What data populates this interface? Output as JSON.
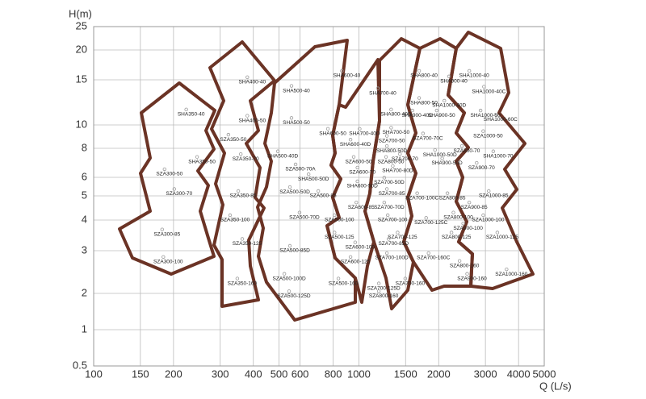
{
  "chart_data": {
    "type": "scatter",
    "y_label": "H(m)",
    "x_label": "Q (L/s)",
    "xscale": "log",
    "yscale": "log",
    "xlim": [
      100,
      5000
    ],
    "ylim": [
      0.5,
      25
    ],
    "xticks": [
      100,
      150,
      200,
      300,
      400,
      500,
      600,
      800,
      1000,
      1500,
      2000,
      3000,
      4000,
      5000
    ],
    "yticks": [
      0.5,
      1,
      2,
      3,
      4,
      5,
      6,
      8,
      10,
      15,
      20,
      25
    ],
    "grid": true,
    "marker_color": "#999999",
    "points": [
      {
        "label": "SHA350-40",
        "x": 233,
        "y": 11.0
      },
      {
        "label": "SHA350-50",
        "x": 256,
        "y": 7.0
      },
      {
        "label": "SZA300-50",
        "x": 193,
        "y": 6.2
      },
      {
        "label": "SZA300-70",
        "x": 210,
        "y": 5.1
      },
      {
        "label": "SZA300-85",
        "x": 189,
        "y": 3.5
      },
      {
        "label": "SZA300-100",
        "x": 191,
        "y": 2.7
      },
      {
        "label": "SHA400-40",
        "x": 396,
        "y": 14.7
      },
      {
        "label": "SHA400-50",
        "x": 396,
        "y": 10.4
      },
      {
        "label": "SZA350-50",
        "x": 336,
        "y": 8.7
      },
      {
        "label": "SZA350-70",
        "x": 374,
        "y": 7.2
      },
      {
        "label": "SZA350-85",
        "x": 366,
        "y": 5.0
      },
      {
        "label": "SZA350-100",
        "x": 341,
        "y": 4.0
      },
      {
        "label": "SZA350-125",
        "x": 379,
        "y": 3.2
      },
      {
        "label": "SZA350-160",
        "x": 363,
        "y": 2.2
      },
      {
        "label": "SHA500-40",
        "x": 581,
        "y": 13.6
      },
      {
        "label": "SHA500-50",
        "x": 581,
        "y": 10.2
      },
      {
        "label": "SHA500-40D",
        "x": 516,
        "y": 7.4
      },
      {
        "label": "SZA500-70A",
        "x": 602,
        "y": 6.5
      },
      {
        "label": "SHA500-50D",
        "x": 674,
        "y": 5.9
      },
      {
        "label": "SZA500-50D",
        "x": 573,
        "y": 5.2
      },
      {
        "label": "SZA500-85",
        "x": 733,
        "y": 5.0
      },
      {
        "label": "SZA500-70D",
        "x": 623,
        "y": 4.1
      },
      {
        "label": "SZA500-100",
        "x": 844,
        "y": 4.0
      },
      {
        "label": "SZA500-125",
        "x": 844,
        "y": 3.4
      },
      {
        "label": "SZA500-85D",
        "x": 573,
        "y": 3.0
      },
      {
        "label": "SZA500-100D",
        "x": 546,
        "y": 2.3
      },
      {
        "label": "SZA500-125D",
        "x": 569,
        "y": 1.9
      },
      {
        "label": "SZA500-160",
        "x": 873,
        "y": 2.2
      },
      {
        "label": "SHA600-40",
        "x": 900,
        "y": 15.6
      },
      {
        "label": "SHA600-50",
        "x": 797,
        "y": 9.2
      },
      {
        "label": "SHA600-40D",
        "x": 970,
        "y": 8.3
      },
      {
        "label": "SZA600-50",
        "x": 997,
        "y": 7.0
      },
      {
        "label": "SZA600-70",
        "x": 1030,
        "y": 6.3
      },
      {
        "label": "SHA600-50D",
        "x": 1030,
        "y": 5.5
      },
      {
        "label": "SZA600-85",
        "x": 1020,
        "y": 4.5
      },
      {
        "label": "SZA600-100",
        "x": 1010,
        "y": 3.1
      },
      {
        "label": "SZA600-125",
        "x": 970,
        "y": 2.7
      },
      {
        "label": "SHA700-40D",
        "x": 1050,
        "y": 9.2
      },
      {
        "label": "SHA700-40",
        "x": 1230,
        "y": 13.3
      },
      {
        "label": "SHA800-40D",
        "x": 1380,
        "y": 11.0
      },
      {
        "label": "SHA700-50",
        "x": 1380,
        "y": 9.3
      },
      {
        "label": "SZA700-50",
        "x": 1330,
        "y": 8.6
      },
      {
        "label": "SHA800-50D",
        "x": 1330,
        "y": 7.8
      },
      {
        "label": "SZA800-50",
        "x": 1320,
        "y": 7.0
      },
      {
        "label": "SZA700-70",
        "x": 1490,
        "y": 7.2
      },
      {
        "label": "SHA700-80D",
        "x": 1400,
        "y": 6.4
      },
      {
        "label": "SZA700-50D",
        "x": 1300,
        "y": 5.7
      },
      {
        "label": "SZA700-85",
        "x": 1330,
        "y": 5.1
      },
      {
        "label": "SZA700-70D",
        "x": 1300,
        "y": 4.5
      },
      {
        "label": "SZA700-100",
        "x": 1340,
        "y": 4.0
      },
      {
        "label": "SZA700-125",
        "x": 1460,
        "y": 3.4
      },
      {
        "label": "SZA700-85D",
        "x": 1350,
        "y": 3.2
      },
      {
        "label": "SZA700-100D",
        "x": 1330,
        "y": 2.8
      },
      {
        "label": "SZA700-125D",
        "x": 1240,
        "y": 2.1
      },
      {
        "label": "SZA700-160",
        "x": 1560,
        "y": 2.2
      },
      {
        "label": "SZA800-160",
        "x": 1240,
        "y": 1.9
      },
      {
        "label": "SHA800-40",
        "x": 1760,
        "y": 15.6
      },
      {
        "label": "SHA800-50",
        "x": 1760,
        "y": 12.2
      },
      {
        "label": "SHA900-40",
        "x": 2280,
        "y": 14.8
      },
      {
        "label": "SHA1000-40D",
        "x": 2190,
        "y": 11.9
      },
      {
        "label": "SHA900-40D",
        "x": 1660,
        "y": 10.9
      },
      {
        "label": "SHA900-50",
        "x": 2050,
        "y": 10.9
      },
      {
        "label": "SZA700-70C",
        "x": 1820,
        "y": 8.8
      },
      {
        "label": "SZA800-70",
        "x": 2550,
        "y": 7.8
      },
      {
        "label": "SHA1000-50D",
        "x": 2020,
        "y": 7.5
      },
      {
        "label": "SHA900-50D",
        "x": 2150,
        "y": 6.9
      },
      {
        "label": "SZA700-100C",
        "x": 1730,
        "y": 4.9
      },
      {
        "label": "SZA800-85",
        "x": 2250,
        "y": 4.9
      },
      {
        "label": "SZA800-100",
        "x": 2370,
        "y": 4.1
      },
      {
        "label": "SZA700-125C",
        "x": 1870,
        "y": 3.9
      },
      {
        "label": "SZA800-125",
        "x": 2330,
        "y": 3.4
      },
      {
        "label": "SZA800-160",
        "x": 2500,
        "y": 2.6
      },
      {
        "label": "SZA700-160C",
        "x": 1910,
        "y": 2.8
      },
      {
        "label": "SHA1000-40",
        "x": 2720,
        "y": 15.6
      },
      {
        "label": "SHA1000-40C",
        "x": 3090,
        "y": 13.5
      },
      {
        "label": "SHA1000-50",
        "x": 3000,
        "y": 10.9
      },
      {
        "label": "SHA1000-60C",
        "x": 3420,
        "y": 10.5
      },
      {
        "label": "SZA1000-50",
        "x": 3070,
        "y": 9.0
      },
      {
        "label": "SHA1000-70",
        "x": 3350,
        "y": 7.4
      },
      {
        "label": "SZA900-70",
        "x": 2900,
        "y": 6.6
      },
      {
        "label": "SZA1000-85",
        "x": 3220,
        "y": 5.0
      },
      {
        "label": "SZA900-85",
        "x": 2720,
        "y": 4.5
      },
      {
        "label": "SZA1000-100",
        "x": 3070,
        "y": 4.0
      },
      {
        "label": "SZA900-100",
        "x": 2580,
        "y": 3.7
      },
      {
        "label": "SZA1000-125",
        "x": 3470,
        "y": 3.4
      },
      {
        "label": "SZA1000-160",
        "x": 3760,
        "y": 2.4
      },
      {
        "label": "SZA900-160",
        "x": 2670,
        "y": 2.3
      }
    ]
  }
}
